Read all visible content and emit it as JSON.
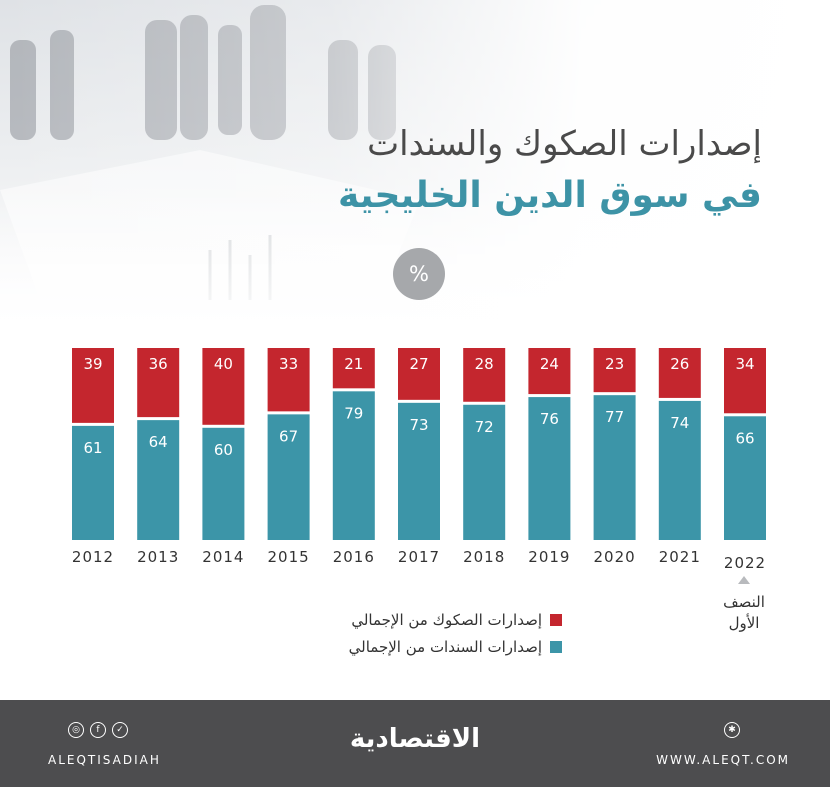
{
  "title": {
    "line1": "إصدارات الصكوك والسندات",
    "line2": "في سوق الدين الخليجية"
  },
  "unit_badge": "%",
  "note": {
    "line1": "النصف",
    "line2": "الأول"
  },
  "chart_data": {
    "type": "bar",
    "stacked": true,
    "unit": "%",
    "categories": [
      "2012",
      "2013",
      "2014",
      "2015",
      "2016",
      "2017",
      "2018",
      "2019",
      "2020",
      "2021",
      "2022"
    ],
    "series": [
      {
        "name": "إصدارات السندات من الإجمالي",
        "color": "#3c95a8",
        "values": [
          61,
          64,
          60,
          67,
          79,
          73,
          72,
          76,
          77,
          74,
          66
        ]
      },
      {
        "name": "إصدارات الصكوك من الإجمالي",
        "color": "#c4262e",
        "values": [
          39,
          36,
          40,
          33,
          21,
          27,
          28,
          24,
          23,
          26,
          34
        ]
      }
    ],
    "ylim": [
      0,
      100
    ],
    "grid": false,
    "legend_position": "bottom"
  },
  "legend": [
    {
      "label": "إصدارات الصكوك من الإجمالي",
      "color": "#c4262e"
    },
    {
      "label": "إصدارات السندات من الإجمالي",
      "color": "#3c95a8"
    }
  ],
  "footer": {
    "handle": "ALEQTISADIAH",
    "logo": "الاقتصادية",
    "website": "WWW.ALEQT.COM",
    "social_icons": [
      "instagram-icon",
      "facebook-icon",
      "twitter-icon"
    ],
    "background": "#4d4d4f"
  }
}
